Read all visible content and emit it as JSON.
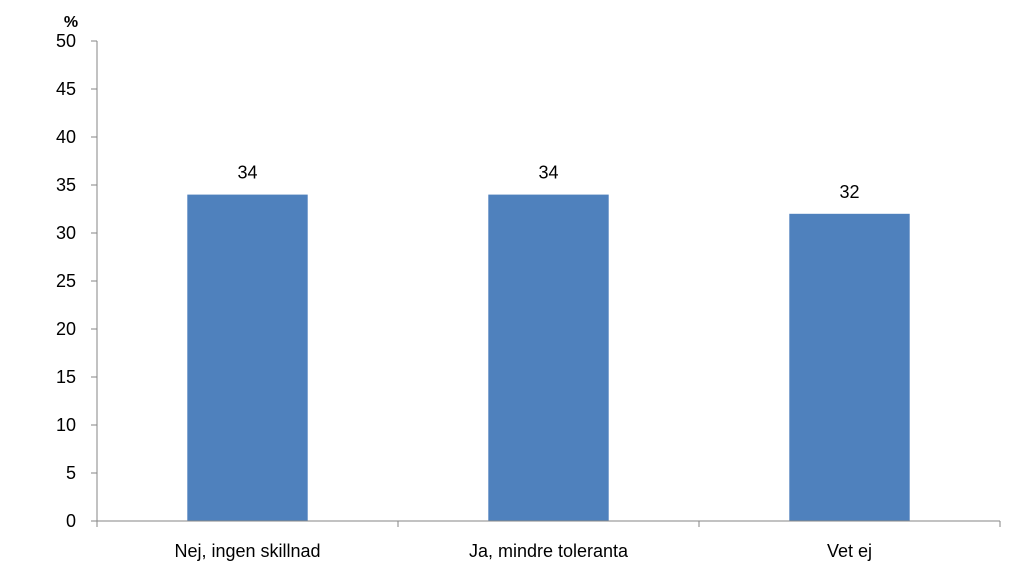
{
  "chart_data": {
    "type": "bar",
    "title": "",
    "xlabel": "",
    "ylabel": "%",
    "ylim": [
      0,
      50
    ],
    "yticks": [
      0,
      5,
      10,
      15,
      20,
      25,
      30,
      35,
      40,
      45,
      50
    ],
    "grid": false,
    "categories": [
      "Nej, ingen skillnad",
      "Ja, mindre toleranta",
      "Vet ej"
    ],
    "series": [
      {
        "name": "Andel",
        "values": [
          34,
          34,
          32
        ],
        "color": "#4F81BD"
      }
    ],
    "data_labels": [
      "34",
      "34",
      "32"
    ]
  }
}
